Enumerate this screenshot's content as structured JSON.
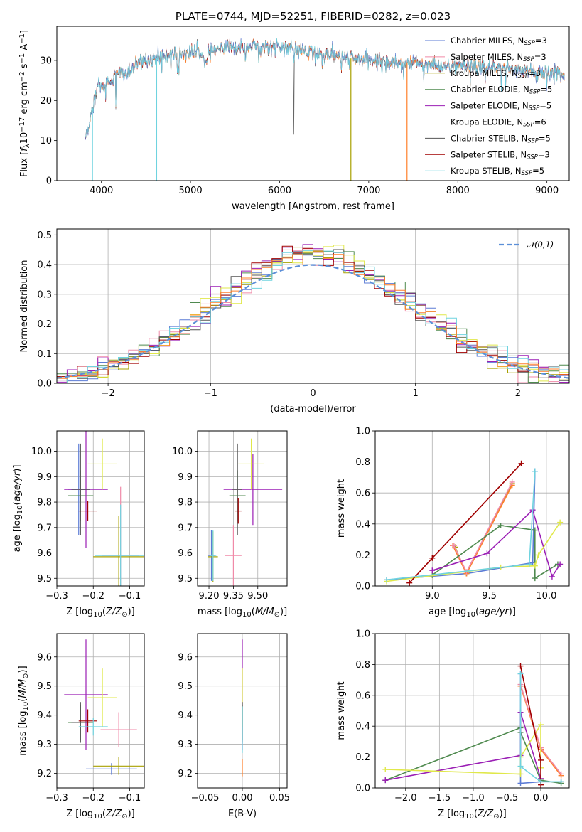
{
  "colors": {
    "Chabrier MILES": "#5b7bd5",
    "Salpeter MILES": "#f08aa8",
    "Kroupa MILES": "#a8a000",
    "Chabrier ELODIE": "#4f8a4f",
    "Salpeter ELODIE": "#9b1fb5",
    "Kroupa ELODIE": "#e0e84a",
    "Chabrier STELIB": "#555555",
    "Salpeter STELIB": "#a00000",
    "Kroupa STELIB": "#6fd3df",
    "extra_orange": "#ff7f2a"
  },
  "chart_data": [
    {
      "id": "spectrum",
      "type": "line",
      "title": "PLATE=0744, MJD=52251, FIBERID=0282, z=0.023",
      "xlabel": "wavelength [Angstrom, rest frame]",
      "ylabel": "Flux [f_λ10^-17 erg cm^-2 s^-1 A^-1]",
      "xlim": [
        3500,
        9250
      ],
      "ylim": [
        0,
        38.5
      ],
      "xticks": [
        4000,
        5000,
        6000,
        7000,
        8000,
        9000
      ],
      "yticks": [
        0,
        10,
        20,
        30
      ],
      "legend_position": "upper-right",
      "legend": [
        {
          "label": "Chabrier MILES, N",
          "sub": "SSP",
          "suffix": "=3"
        },
        {
          "label": "Salpeter MILES, N",
          "sub": "SSP",
          "suffix": "=3"
        },
        {
          "label": "Kroupa MILES, N",
          "sub": "SSP",
          "suffix": "=3"
        },
        {
          "label": "Chabrier ELODIE, N",
          "sub": "SSP",
          "suffix": "=5"
        },
        {
          "label": "Salpeter ELODIE, N",
          "sub": "SSP",
          "suffix": "=5"
        },
        {
          "label": "Kroupa ELODIE, N",
          "sub": "SSP",
          "suffix": "=6"
        },
        {
          "label": "Chabrier STELIB, N",
          "sub": "SSP",
          "suffix": "=5"
        },
        {
          "label": "Salpeter STELIB, N",
          "sub": "SSP",
          "suffix": "=3"
        },
        {
          "label": "Kroupa STELIB, N",
          "sub": "SSP",
          "suffix": "=5"
        }
      ],
      "continuum": [
        [
          3820,
          11
        ],
        [
          3880,
          16
        ],
        [
          3950,
          24
        ],
        [
          4000,
          23
        ],
        [
          4100,
          25
        ],
        [
          4200,
          27
        ],
        [
          4300,
          26.5
        ],
        [
          4400,
          29
        ],
        [
          4500,
          30
        ],
        [
          4600,
          30.5
        ],
        [
          4700,
          31
        ],
        [
          4800,
          31.5
        ],
        [
          5000,
          32
        ],
        [
          5200,
          32
        ],
        [
          5400,
          33
        ],
        [
          5600,
          33.5
        ],
        [
          5800,
          33.3
        ],
        [
          6000,
          33.5
        ],
        [
          6200,
          32.5
        ],
        [
          6500,
          31.5
        ],
        [
          6800,
          30.5
        ],
        [
          7000,
          30
        ],
        [
          7200,
          29.5
        ],
        [
          7500,
          29.5
        ],
        [
          7800,
          28.5
        ],
        [
          8000,
          28.5
        ],
        [
          8300,
          28
        ],
        [
          8600,
          28
        ],
        [
          8800,
          27.5
        ],
        [
          9000,
          27
        ],
        [
          9200,
          26.5
        ]
      ],
      "spikes_down": [
        [
          3900,
          0
        ],
        [
          4620,
          0
        ],
        [
          6800,
          0
        ],
        [
          7430,
          0
        ]
      ],
      "spike_up": [
        6160,
        11.5
      ]
    },
    {
      "id": "residuals",
      "type": "histogram",
      "xlabel": "(data-model)/error",
      "ylabel": "Normed distribution",
      "xlim": [
        -2.5,
        2.5
      ],
      "ylim": [
        0,
        0.52
      ],
      "xticks": [
        -2,
        -1,
        0,
        1,
        2
      ],
      "yticks": [
        0.0,
        0.1,
        0.2,
        0.3,
        0.4,
        0.5
      ],
      "legend": "𝒩(0,1)",
      "legend_position": "upper-right"
    },
    {
      "id": "age-vs-Z",
      "type": "errorbar",
      "xlabel": "Z [log10(Z/Z⊙)]",
      "ylabel": "age  [log10(age/yr)]",
      "xlim": [
        -0.3,
        -0.06
      ],
      "ylim": [
        9.47,
        10.08
      ],
      "xticks": [
        -0.3,
        -0.2,
        -0.1
      ],
      "yticks": [
        9.5,
        9.6,
        9.7,
        9.8,
        9.9,
        10.0
      ],
      "points": [
        {
          "c": "Chabrier MILES",
          "x": -0.24,
          "xe": 0.03,
          "y": 9.85,
          "ye": 0.18
        },
        {
          "c": "Salpeter MILES",
          "x": -0.125,
          "xe": 0.05,
          "y": 9.59,
          "ye": 0.27
        },
        {
          "c": "Kroupa MILES",
          "x": -0.13,
          "xe": 0.07,
          "y": 9.585,
          "ye": 0.16
        },
        {
          "c": "Chabrier ELODIE",
          "x": -0.235,
          "xe": 0.035,
          "y": 9.825,
          "ye": 0.1
        },
        {
          "c": "Salpeter ELODIE",
          "x": -0.22,
          "xe": 0.06,
          "y": 9.85,
          "ye": 0.23
        },
        {
          "c": "Kroupa ELODIE",
          "x": -0.175,
          "xe": 0.04,
          "y": 9.95,
          "ye": 0.1
        },
        {
          "c": "Chabrier STELIB",
          "x": -0.235,
          "xe": 0.025,
          "y": 9.85,
          "ye": 0.18
        },
        {
          "c": "Salpeter STELIB",
          "x": -0.215,
          "xe": 0.025,
          "y": 9.765,
          "ye": 0.04
        },
        {
          "c": "Kroupa STELIB",
          "x": -0.125,
          "xe": 0.07,
          "y": 9.59,
          "ye": 0.2
        }
      ]
    },
    {
      "id": "age-vs-mass",
      "type": "errorbar",
      "xlabel": "mass [log10(M/M⊙)]",
      "ylabel": "",
      "xlim": [
        9.13,
        9.68
      ],
      "ylim": [
        9.47,
        10.08
      ],
      "xticks": [
        9.2,
        9.35,
        9.5
      ],
      "xticklabels": [
        "9.20",
        "9.35",
        "9.50"
      ],
      "yticks": [
        9.5,
        9.6,
        9.7,
        9.8,
        9.9,
        10.0
      ],
      "points": [
        {
          "c": "Chabrier MILES",
          "x": 9.215,
          "xe": 0.02,
          "y": 9.59,
          "ye": 0.1
        },
        {
          "c": "Salpeter MILES",
          "x": 9.35,
          "xe": 0.05,
          "y": 9.59,
          "ye": 0.12
        },
        {
          "c": "Kroupa MILES",
          "x": 9.225,
          "xe": 0.03,
          "y": 9.585,
          "ye": 0.1
        },
        {
          "c": "Chabrier ELODIE",
          "x": 9.375,
          "xe": 0.05,
          "y": 9.825,
          "ye": 0.1
        },
        {
          "c": "Salpeter ELODIE",
          "x": 9.47,
          "xe": 0.18,
          "y": 9.85,
          "ye": 0.14
        },
        {
          "c": "Kroupa ELODIE",
          "x": 9.46,
          "xe": 0.08,
          "y": 9.95,
          "ye": 0.1
        },
        {
          "c": "Chabrier STELIB",
          "x": 9.375,
          "xe": 0.03,
          "y": 9.85,
          "ye": 0.18
        },
        {
          "c": "Salpeter STELIB",
          "x": 9.38,
          "xe": 0.02,
          "y": 9.765,
          "ye": 0.05
        },
        {
          "c": "Kroupa STELIB",
          "x": 9.225,
          "xe": 0.02,
          "y": 9.59,
          "ye": 0.1
        }
      ]
    },
    {
      "id": "weight-vs-age",
      "type": "line",
      "xlabel": "age  [log10(age/yr)]",
      "ylabel": "mass weight",
      "xlim": [
        8.5,
        10.2
      ],
      "ylim": [
        0,
        1.0
      ],
      "xticks": [
        9.0,
        9.5,
        10.0
      ],
      "yticks": [
        0.0,
        0.2,
        0.4,
        0.6,
        0.8,
        1.0
      ],
      "series": [
        {
          "c": "Chabrier MILES",
          "x": [
            8.6,
            9.3,
            9.88,
            9.9
          ],
          "y": [
            0.04,
            0.08,
            0.15,
            0.74
          ]
        },
        {
          "c": "Kroupa MILES",
          "x": [
            9.2,
            9.3,
            9.7
          ],
          "y": [
            0.25,
            0.08,
            0.66
          ]
        },
        {
          "c": "extra_orange",
          "x": [
            9.18,
            9.3,
            9.7
          ],
          "y": [
            0.26,
            0.08,
            0.65
          ]
        },
        {
          "c": "Salpeter MILES",
          "x": [
            9.19,
            9.3,
            9.7
          ],
          "y": [
            0.26,
            0.09,
            0.67
          ]
        },
        {
          "c": "Chabrier ELODIE",
          "x": [
            9.0,
            9.6,
            9.9,
            9.9,
            10.1
          ],
          "y": [
            0.07,
            0.39,
            0.36,
            0.05,
            0.14
          ]
        },
        {
          "c": "Salpeter ELODIE",
          "x": [
            9.0,
            9.48,
            9.88,
            10.05,
            10.12
          ],
          "y": [
            0.1,
            0.21,
            0.49,
            0.06,
            0.14
          ]
        },
        {
          "c": "Kroupa ELODIE",
          "x": [
            8.6,
            9.6,
            9.9,
            9.93,
            10.12
          ],
          "y": [
            0.03,
            0.12,
            0.13,
            0.2,
            0.41
          ]
        },
        {
          "c": "Salpeter STELIB",
          "x": [
            8.8,
            9.0,
            9.78
          ],
          "y": [
            0.02,
            0.18,
            0.79
          ]
        },
        {
          "c": "Kroupa STELIB",
          "x": [
            8.6,
            9.85,
            9.9
          ],
          "y": [
            0.04,
            0.14,
            0.74
          ]
        }
      ]
    },
    {
      "id": "mass-vs-Z",
      "type": "errorbar",
      "xlabel": "Z [log10(Z/Z⊙)]",
      "ylabel": "mass [log10(M/M⊙)]",
      "xlim": [
        -0.3,
        -0.06
      ],
      "ylim": [
        9.15,
        9.68
      ],
      "xticks": [
        -0.3,
        -0.2,
        -0.1
      ],
      "yticks": [
        9.2,
        9.3,
        9.4,
        9.5,
        9.6
      ],
      "points": [
        {
          "c": "Chabrier MILES",
          "x": -0.15,
          "xe": 0.07,
          "y": 9.215,
          "ye": 0.02
        },
        {
          "c": "Salpeter MILES",
          "x": -0.13,
          "xe": 0.05,
          "y": 9.35,
          "ye": 0.06
        },
        {
          "c": "Kroupa MILES",
          "x": -0.13,
          "xe": 0.07,
          "y": 9.225,
          "ye": 0.03
        },
        {
          "c": "Chabrier ELODIE",
          "x": -0.235,
          "xe": 0.035,
          "y": 9.375,
          "ye": 0.06
        },
        {
          "c": "Salpeter ELODIE",
          "x": -0.22,
          "xe": 0.06,
          "y": 9.47,
          "ye": 0.19
        },
        {
          "c": "Kroupa ELODIE",
          "x": -0.175,
          "xe": 0.04,
          "y": 9.46,
          "ye": 0.1
        },
        {
          "c": "Chabrier STELIB",
          "x": -0.235,
          "xe": 0.025,
          "y": 9.375,
          "ye": 0.07
        },
        {
          "c": "Salpeter STELIB",
          "x": -0.215,
          "xe": 0.025,
          "y": 9.38,
          "ye": 0.04
        },
        {
          "c": "Kroupa STELIB",
          "x": -0.2,
          "xe": 0.04,
          "y": 9.36,
          "ye": 0.03
        }
      ]
    },
    {
      "id": "mass-vs-EBV",
      "type": "errorbar",
      "xlabel": "E(B-V)",
      "ylabel": "",
      "xlim": [
        -0.06,
        0.06
      ],
      "ylim": [
        9.15,
        9.68
      ],
      "xticks": [
        -0.05,
        0.0,
        0.05
      ],
      "xticklabels": [
        "−0.05",
        "0.00",
        "0.05"
      ],
      "yticks": [
        9.2,
        9.3,
        9.4,
        9.5,
        9.6
      ],
      "points": [
        {
          "c": "Salpeter ELODIE",
          "x": 0,
          "xe": 0,
          "y": 9.47,
          "ye": 0.19
        },
        {
          "c": "Kroupa ELODIE",
          "x": 0,
          "xe": 0,
          "y": 9.46,
          "ye": 0.1
        },
        {
          "c": "Chabrier ELODIE",
          "x": 0,
          "xe": 0,
          "y": 9.375,
          "ye": 0.06
        },
        {
          "c": "Chabrier STELIB",
          "x": 0,
          "xe": 0,
          "y": 9.375,
          "ye": 0.07
        },
        {
          "c": "extra_orange",
          "x": 0,
          "xe": 0,
          "y": 9.22,
          "ye": 0.03
        },
        {
          "c": "Kroupa STELIB",
          "x": 0,
          "xe": 0,
          "y": 9.35,
          "ye": 0.08
        }
      ]
    },
    {
      "id": "weight-vs-Z",
      "type": "line",
      "xlabel": "Z [log10(Z/Z⊙)]",
      "ylabel": "mass weight",
      "xlim": [
        -2.45,
        0.42
      ],
      "ylim": [
        0,
        1.0
      ],
      "xticks": [
        -2.0,
        -1.5,
        -1.0,
        -0.5,
        0.0
      ],
      "yticks": [
        0.0,
        0.2,
        0.4,
        0.6,
        0.8,
        1.0
      ],
      "series": [
        {
          "c": "Chabrier MILES",
          "x": [
            -0.3,
            -0.3,
            0.0,
            0.3
          ],
          "y": [
            0.74,
            0.03,
            0.04,
            0.04
          ]
        },
        {
          "c": "extra_orange",
          "x": [
            -0.3,
            0.0,
            0.3
          ],
          "y": [
            0.66,
            0.25,
            0.08
          ]
        },
        {
          "c": "Salpeter MILES",
          "x": [
            -0.3,
            0.0,
            0.3
          ],
          "y": [
            0.67,
            0.26,
            0.09
          ]
        },
        {
          "c": "Chabrier ELODIE",
          "x": [
            -2.3,
            -0.3,
            -0.3,
            0.0,
            0.3
          ],
          "y": [
            0.05,
            0.39,
            0.36,
            0.05,
            0.03
          ]
        },
        {
          "c": "Salpeter ELODIE",
          "x": [
            -2.3,
            -0.3,
            -0.3,
            0.0
          ],
          "y": [
            0.05,
            0.21,
            0.49,
            0.06
          ]
        },
        {
          "c": "Kroupa ELODIE",
          "x": [
            -2.3,
            -0.3,
            -0.3,
            0.0,
            0.0
          ],
          "y": [
            0.12,
            0.09,
            0.2,
            0.41,
            0.13
          ]
        },
        {
          "c": "Salpeter STELIB",
          "x": [
            -0.3,
            0.0,
            0.0
          ],
          "y": [
            0.79,
            0.18,
            0.02
          ]
        },
        {
          "c": "Kroupa STELIB",
          "x": [
            -0.3,
            -0.3,
            0.0,
            0.3
          ],
          "y": [
            0.74,
            0.14,
            0.04,
            0.04
          ]
        }
      ]
    }
  ]
}
